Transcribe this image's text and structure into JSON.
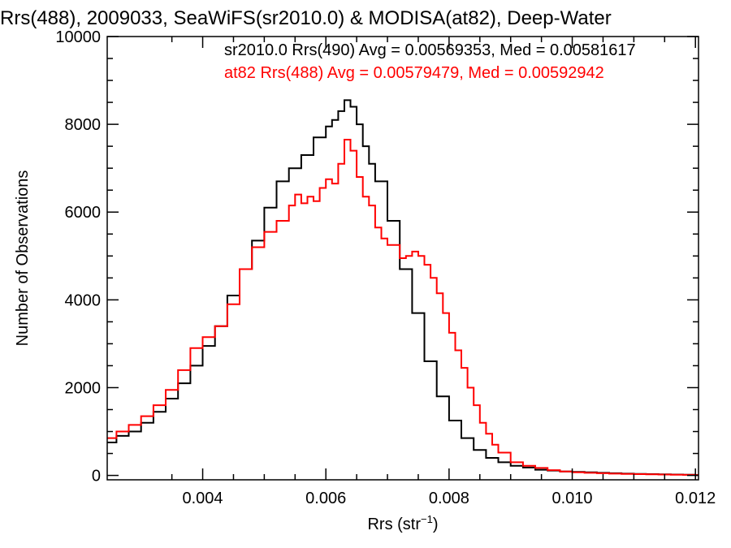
{
  "chart_data": {
    "type": "line",
    "title": "Rrs(488), 2009033, SeaWiFS(sr2010.0) & MODISA(at82), Deep-Water",
    "xlabel": "Rrs (str",
    "xlabel_sup": "−1",
    "xlabel_close": ")",
    "ylabel": "Number of Observations",
    "xlim": [
      0.00245,
      0.01205
    ],
    "ylim": [
      -100,
      10000
    ],
    "xticks": [
      0.004,
      0.006,
      0.008,
      0.01,
      0.012
    ],
    "xtick_labels": [
      "0.004",
      "0.006",
      "0.008",
      "0.010",
      "0.012"
    ],
    "xminor_step": 0.0005,
    "yticks": [
      0,
      2000,
      4000,
      6000,
      8000,
      10000
    ],
    "ytick_labels": [
      "0",
      "2000",
      "4000",
      "6000",
      "8000",
      "10000"
    ],
    "yminor_step": 500,
    "step_plot": true,
    "grid": false,
    "legend_placement": "top-right",
    "series": [
      {
        "label": "sr2010.0 Rrs(490) Avg = 0.00569353, Med = 0.00581617",
        "color": "#000000",
        "x": [
          0.00245,
          0.0026,
          0.0028,
          0.003,
          0.0032,
          0.0034,
          0.0036,
          0.0038,
          0.004,
          0.0042,
          0.0044,
          0.0046,
          0.0048,
          0.005,
          0.0052,
          0.0054,
          0.0056,
          0.0058,
          0.006,
          0.0061,
          0.0062,
          0.0063,
          0.0064,
          0.0065,
          0.0066,
          0.0067,
          0.0068,
          0.007,
          0.0072,
          0.0074,
          0.0076,
          0.0078,
          0.008,
          0.0082,
          0.0084,
          0.0086,
          0.0088,
          0.009,
          0.0092,
          0.0094,
          0.0096,
          0.0098,
          0.01,
          0.0102,
          0.0104,
          0.0106,
          0.0108,
          0.011,
          0.0112,
          0.0114,
          0.0116,
          0.0118,
          0.012
        ],
        "y": [
          750,
          900,
          1000,
          1200,
          1450,
          1750,
          2100,
          2500,
          2950,
          3400,
          4100,
          4700,
          5350,
          6100,
          6700,
          7000,
          7300,
          7700,
          7950,
          8100,
          8300,
          8550,
          8400,
          8000,
          7500,
          7100,
          6700,
          5800,
          4700,
          3700,
          2600,
          1800,
          1250,
          850,
          580,
          400,
          300,
          220,
          180,
          130,
          110,
          90,
          80,
          70,
          60,
          50,
          40,
          35,
          30,
          25,
          20,
          15,
          10
        ]
      },
      {
        "label": "at82 Rrs(488) Avg = 0.00579479, Med = 0.00592942",
        "color": "#ff0000",
        "x": [
          0.00245,
          0.0026,
          0.0028,
          0.003,
          0.0032,
          0.0034,
          0.0036,
          0.0038,
          0.004,
          0.0042,
          0.0044,
          0.0046,
          0.0048,
          0.005,
          0.0052,
          0.0054,
          0.0055,
          0.0056,
          0.0057,
          0.0058,
          0.0059,
          0.006,
          0.0061,
          0.0062,
          0.0063,
          0.0064,
          0.0065,
          0.0066,
          0.0067,
          0.0068,
          0.0069,
          0.007,
          0.0071,
          0.0072,
          0.0073,
          0.0074,
          0.0075,
          0.0076,
          0.0077,
          0.0078,
          0.0079,
          0.008,
          0.0081,
          0.0082,
          0.0083,
          0.0084,
          0.0085,
          0.0086,
          0.0087,
          0.0088,
          0.009,
          0.0092,
          0.0094,
          0.0096,
          0.0098,
          0.01,
          0.0102,
          0.0104,
          0.0106,
          0.0108,
          0.011,
          0.0112,
          0.0114,
          0.0116,
          0.0118,
          0.012
        ],
        "y": [
          850,
          1000,
          1150,
          1350,
          1600,
          1950,
          2400,
          2900,
          3150,
          3400,
          3900,
          4700,
          5200,
          5550,
          5800,
          6150,
          6400,
          6200,
          6350,
          6250,
          6550,
          6750,
          6650,
          7100,
          7650,
          7400,
          6800,
          6350,
          6150,
          5650,
          5400,
          5250,
          5250,
          4950,
          5000,
          5100,
          5000,
          4800,
          4500,
          4150,
          3700,
          3250,
          2850,
          2450,
          2000,
          1600,
          1200,
          950,
          700,
          520,
          300,
          220,
          170,
          120,
          90,
          70,
          60,
          50,
          40,
          35,
          30,
          25,
          20,
          15,
          12,
          10
        ]
      }
    ]
  }
}
